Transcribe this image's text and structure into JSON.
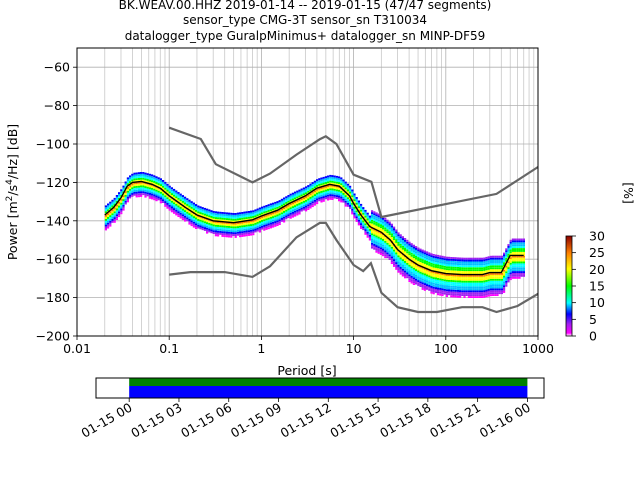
{
  "title_lines": [
    "BK.WEAV.00.HHZ   2019-01-14 -- 2019-01-15  (47/47 segments)",
    "sensor_type CMG-3T sensor_sn T310034",
    "datalogger_type GuralpMinimus+ datalogger_sn MINP-DF59"
  ],
  "chart_data": [
    {
      "type": "heatmap",
      "xlabel": "Period [s]",
      "ylabel": "Power [m²/s⁴/Hz] [dB]",
      "xscale": "log",
      "xlim": [
        0.01,
        1000
      ],
      "ylim": [
        -200,
        -50
      ],
      "x_ticks": [
        {
          "value": 0.01,
          "label": "0.01"
        },
        {
          "value": 0.1,
          "label": "0.1"
        },
        {
          "value": 1,
          "label": "1"
        },
        {
          "value": 10,
          "label": "10"
        },
        {
          "value": 100,
          "label": "100"
        },
        {
          "value": 1000,
          "label": "1000"
        }
      ],
      "y_ticks": [
        -60,
        -80,
        -100,
        -120,
        -140,
        -160,
        -180,
        -200
      ],
      "grid": true,
      "noise_model_high": [
        [
          0.1,
          -91.5
        ],
        [
          0.22,
          -97.4
        ],
        [
          0.32,
          -110.5
        ],
        [
          0.8,
          -120
        ],
        [
          1.24,
          -115.4
        ],
        [
          2.4,
          -105.5
        ],
        [
          4.3,
          -97.5
        ],
        [
          5,
          -96
        ],
        [
          6.5,
          -100
        ],
        [
          10,
          -116
        ],
        [
          15.6,
          -119.7
        ],
        [
          20,
          -138
        ],
        [
          354.8,
          -126
        ],
        [
          1000,
          -112
        ]
      ],
      "noise_model_low": [
        [
          0.1,
          -168
        ],
        [
          0.17,
          -166.7
        ],
        [
          0.4,
          -166.7
        ],
        [
          0.8,
          -169.2
        ],
        [
          1.24,
          -163.7
        ],
        [
          2.4,
          -148.6
        ],
        [
          4.3,
          -141.1
        ],
        [
          5,
          -141.1
        ],
        [
          6.5,
          -150
        ],
        [
          10,
          -163
        ],
        [
          12.7,
          -166.2
        ],
        [
          15.4,
          -162.1
        ],
        [
          20,
          -177.5
        ],
        [
          30,
          -185
        ],
        [
          50,
          -187.5
        ],
        [
          80,
          -187.5
        ],
        [
          150,
          -185
        ],
        [
          250,
          -185
        ],
        [
          354.8,
          -187.5
        ],
        [
          600,
          -184.4
        ],
        [
          1000,
          -178
        ]
      ],
      "mean_psd": [
        [
          0.02,
          -137
        ],
        [
          0.025,
          -133
        ],
        [
          0.03,
          -128
        ],
        [
          0.035,
          -122
        ],
        [
          0.04,
          -120
        ],
        [
          0.05,
          -119.5
        ],
        [
          0.065,
          -121
        ],
        [
          0.08,
          -123
        ],
        [
          0.1,
          -127
        ],
        [
          0.15,
          -133
        ],
        [
          0.2,
          -137
        ],
        [
          0.3,
          -140
        ],
        [
          0.5,
          -141
        ],
        [
          0.8,
          -139.5
        ],
        [
          1,
          -137.5
        ],
        [
          1.5,
          -134.5
        ],
        [
          2,
          -131
        ],
        [
          3,
          -127
        ],
        [
          4,
          -123
        ],
        [
          5.5,
          -121
        ],
        [
          7,
          -122
        ],
        [
          9,
          -127
        ],
        [
          10,
          -131
        ],
        [
          12,
          -137
        ],
        [
          15,
          -143
        ],
        [
          20,
          -146
        ],
        [
          25,
          -150
        ],
        [
          30,
          -155
        ],
        [
          40,
          -160
        ],
        [
          50,
          -163
        ],
        [
          70,
          -166
        ],
        [
          100,
          -167.5
        ],
        [
          150,
          -168
        ],
        [
          250,
          -168
        ],
        [
          300,
          -167
        ],
        [
          400,
          -167
        ],
        [
          500,
          -158
        ],
        [
          700,
          -158
        ]
      ],
      "psd_band_width_db": 14,
      "colorbar": {
        "label": "[%]",
        "min": 0,
        "max": 30,
        "ticks": [
          0,
          5,
          10,
          15,
          20,
          25,
          30
        ],
        "colormap": "pqlx"
      }
    },
    {
      "type": "timeline",
      "xlim": [
        "2019-01-14 22:00",
        "2019-01-16 01:00"
      ],
      "data_coverage": [
        "2019-01-15 00:00",
        "2019-01-16 00:00"
      ],
      "x_ticks": [
        {
          "value": "2019-01-15 00:00",
          "label": "01-15 00"
        },
        {
          "value": "2019-01-15 03:00",
          "label": "01-15 03"
        },
        {
          "value": "2019-01-15 06:00",
          "label": "01-15 06"
        },
        {
          "value": "2019-01-15 09:00",
          "label": "01-15 09"
        },
        {
          "value": "2019-01-15 12:00",
          "label": "01-15 12"
        },
        {
          "value": "2019-01-15 15:00",
          "label": "01-15 15"
        },
        {
          "value": "2019-01-15 18:00",
          "label": "01-15 18"
        },
        {
          "value": "2019-01-15 21:00",
          "label": "01-15 21"
        },
        {
          "value": "2019-01-16 00:00",
          "label": "01-16 00"
        }
      ],
      "colors": {
        "available": "#008000",
        "used": "#0000ff"
      }
    }
  ]
}
